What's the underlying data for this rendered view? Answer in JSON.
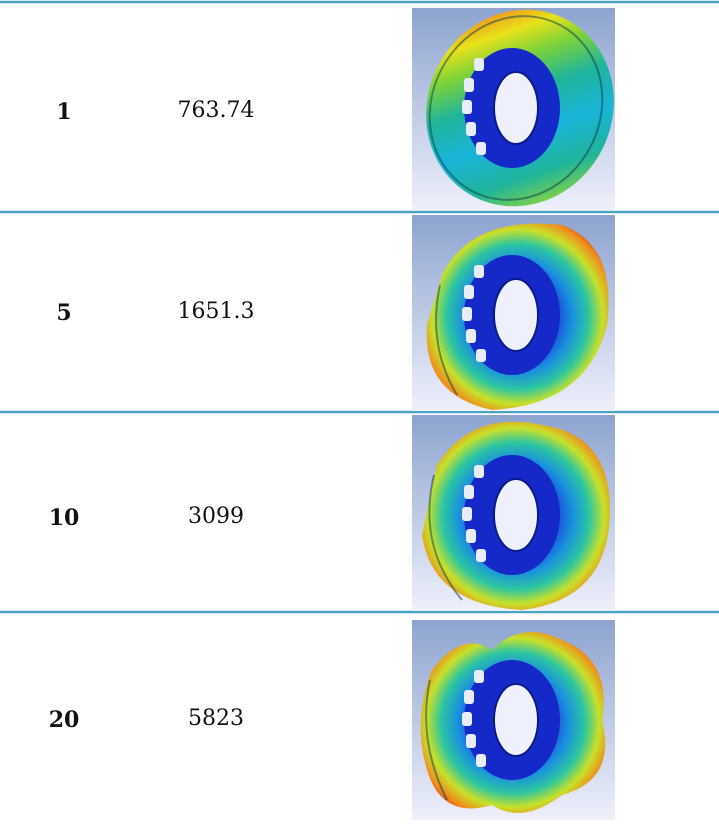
{
  "table": {
    "rows": [
      [
        1,
        763.74
      ],
      [
        5,
        1651.3
      ],
      [
        10,
        3099
      ],
      [
        20,
        5823
      ]
    ]
  }
}
